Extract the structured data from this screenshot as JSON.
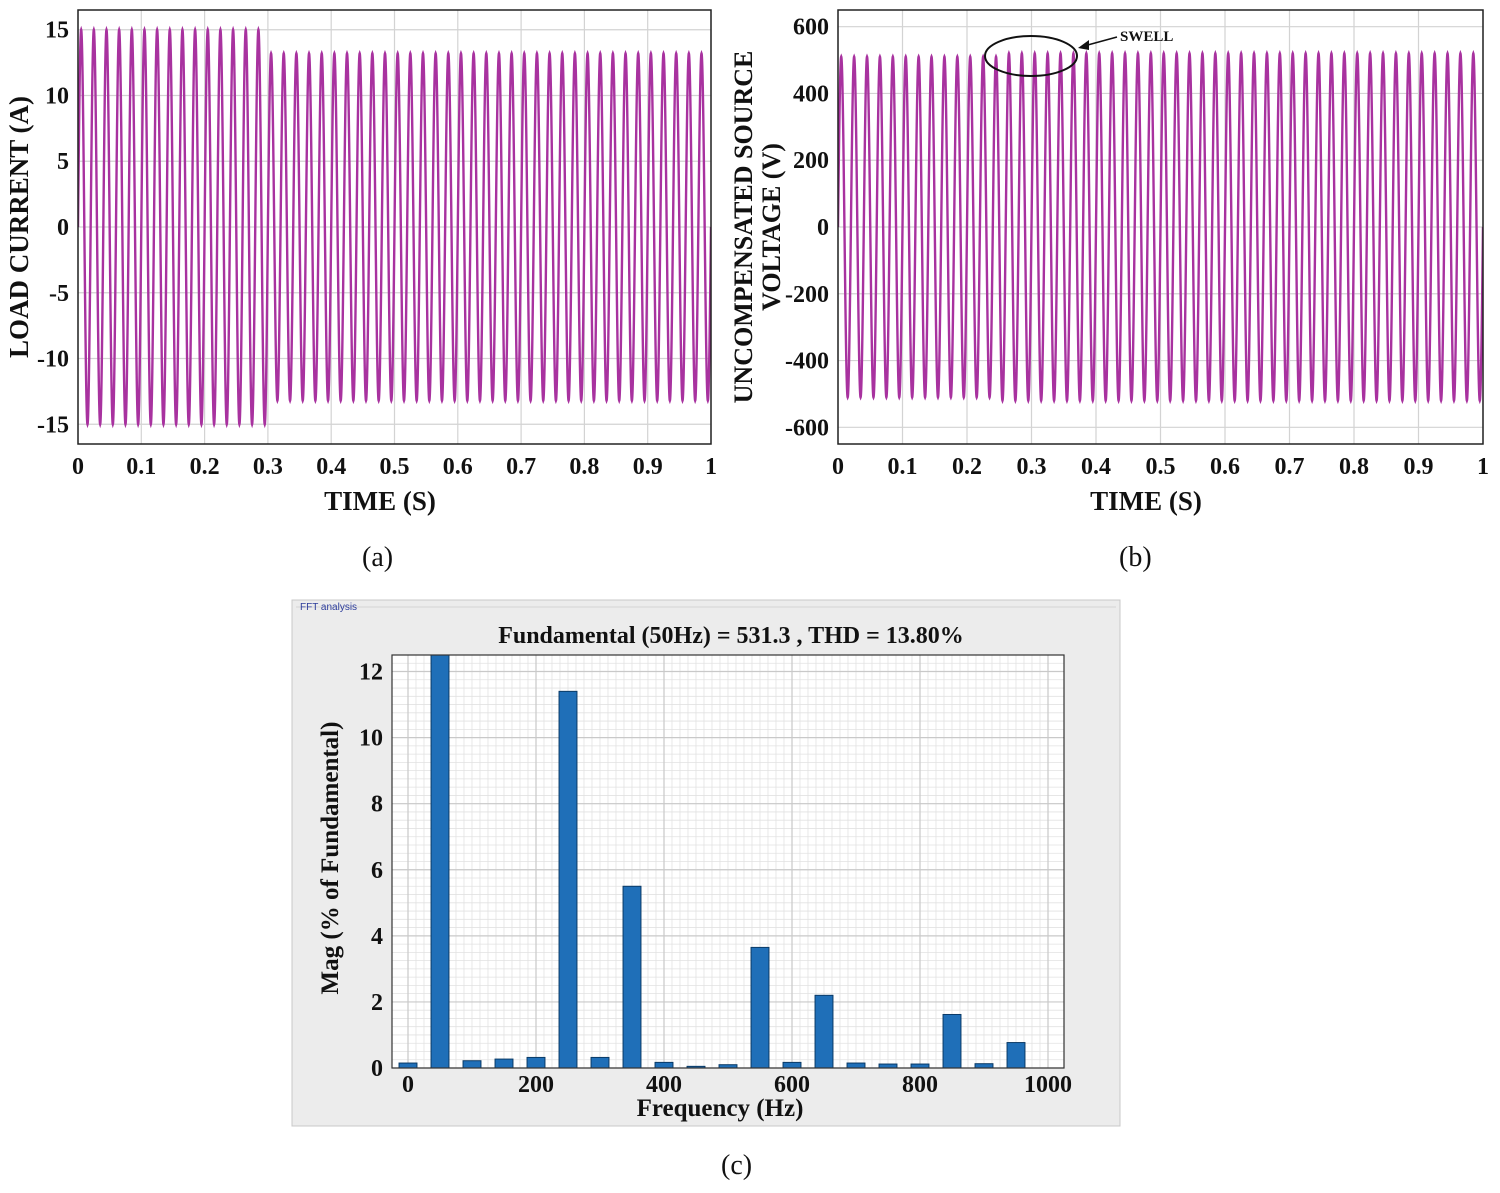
{
  "colors": {
    "signal": "#a8329f",
    "bar_fill": "#1f6fb8",
    "bar_edge": "#0a3a66",
    "grid": "#d3d3d3",
    "fft_panel_bg": "#ececec",
    "fft_grid": "#e2e2e2"
  },
  "panels": {
    "a": {
      "caption": "(a)"
    },
    "b": {
      "caption": "(b)",
      "annotation": "SWELL"
    },
    "c": {
      "caption": "(c)",
      "window_label": "FFT analysis"
    }
  },
  "chart_data": [
    {
      "type": "line",
      "id": "load-current",
      "title": "",
      "xlabel": "TIME (S)",
      "ylabel": "LOAD CURRENT (A)",
      "xlim": [
        0,
        1
      ],
      "ylim": [
        -16.5,
        16.5
      ],
      "xticks": [
        0,
        0.1,
        0.2,
        0.3,
        0.4,
        0.5,
        0.6,
        0.7,
        0.8,
        0.9,
        1
      ],
      "xtick_labels": [
        "0",
        "0.1",
        "0.2",
        "0.3",
        "0.4",
        "0.5",
        "0.6",
        "0.7",
        "0.8",
        "0.9",
        "1"
      ],
      "yticks": [
        -15,
        -10,
        -5,
        0,
        5,
        10,
        15
      ],
      "ytick_labels": [
        "-15",
        "-10",
        "-5",
        "0",
        "5",
        "10",
        "15"
      ],
      "grid": true,
      "series": [
        {
          "name": "load current",
          "waveform": "sine",
          "frequency_hz": 50,
          "segments": [
            {
              "t_start": 0,
              "t_end": 0.3,
              "amplitude": 15
            },
            {
              "t_start": 0.3,
              "t_end": 1,
              "amplitude": 13.2
            }
          ]
        }
      ]
    },
    {
      "type": "line",
      "id": "uncompensated-source-voltage",
      "title": "",
      "xlabel": "TIME (S)",
      "ylabel_lines": [
        "UNCOMPENSATED SOURCE",
        "VOLTAGE (V)"
      ],
      "xlim": [
        0,
        1
      ],
      "ylim": [
        -650,
        650
      ],
      "xticks": [
        0,
        0.1,
        0.2,
        0.3,
        0.4,
        0.5,
        0.6,
        0.7,
        0.8,
        0.9,
        1
      ],
      "xtick_labels": [
        "0",
        "0.1",
        "0.2",
        "0.3",
        "0.4",
        "0.5",
        "0.6",
        "0.7",
        "0.8",
        "0.9",
        "1"
      ],
      "yticks": [
        -600,
        -400,
        -200,
        0,
        200,
        400,
        600
      ],
      "ytick_labels": [
        "-600",
        "-400",
        "-200",
        "0",
        "200",
        "400",
        "600"
      ],
      "grid": true,
      "annotation": {
        "text": "SWELL",
        "t_start": 0.23,
        "t_end": 0.37,
        "value": 510
      },
      "series": [
        {
          "name": "source voltage",
          "waveform": "sine",
          "frequency_hz": 50,
          "segments": [
            {
              "t_start": 0,
              "t_end": 0.25,
              "amplitude": 510
            },
            {
              "t_start": 0.25,
              "t_end": 1,
              "amplitude": 520
            }
          ]
        }
      ]
    },
    {
      "type": "bar",
      "id": "fft-analysis",
      "title": "Fundamental (50Hz) = 531.3 , THD = 13.80%",
      "xlabel": "Frequency (Hz)",
      "ylabel": "Mag (% of Fundamental)",
      "xlim": [
        -25,
        1025
      ],
      "ylim": [
        0,
        12.5
      ],
      "xticks": [
        0,
        200,
        400,
        600,
        800,
        1000
      ],
      "xtick_labels": [
        "0",
        "200",
        "400",
        "600",
        "800",
        "1000"
      ],
      "yticks": [
        0,
        2,
        4,
        6,
        8,
        10,
        12
      ],
      "ytick_labels": [
        "0",
        "2",
        "4",
        "6",
        "8",
        "10",
        "12"
      ],
      "grid": true,
      "bar_width_hz": 28,
      "x": [
        0,
        50,
        100,
        150,
        200,
        250,
        300,
        350,
        400,
        450,
        500,
        550,
        600,
        650,
        700,
        750,
        800,
        850,
        900,
        950
      ],
      "values": [
        0.15,
        12.5,
        0.22,
        0.27,
        0.32,
        11.4,
        0.32,
        5.5,
        0.17,
        0.05,
        0.1,
        3.65,
        0.17,
        2.2,
        0.15,
        0.12,
        0.12,
        1.62,
        0.13,
        0.77
      ]
    }
  ]
}
